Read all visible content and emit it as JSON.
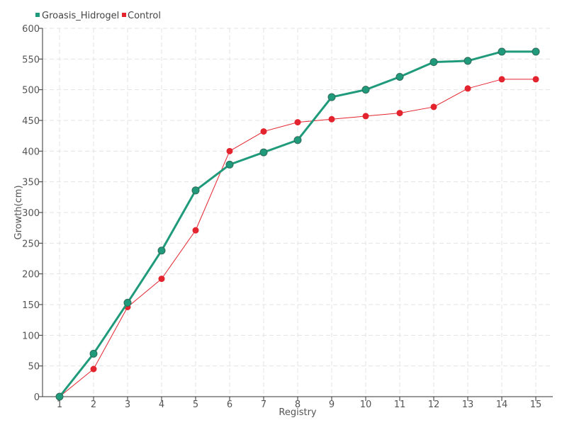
{
  "chart_data": {
    "type": "line",
    "title": "",
    "xlabel": "Registry",
    "ylabel": "Growth(cm)",
    "categories": [
      "1",
      "2",
      "3",
      "4",
      "5",
      "6",
      "7",
      "8",
      "9",
      "10",
      "11",
      "12",
      "13",
      "14",
      "15"
    ],
    "ylim": [
      0,
      600
    ],
    "yticks": [
      0,
      50,
      100,
      150,
      200,
      250,
      300,
      350,
      400,
      450,
      500,
      550,
      600
    ],
    "grid": true,
    "legend_position": "top-left",
    "series": [
      {
        "name": "Groasis_Hidrogel",
        "color": "#1f9a7a",
        "values": [
          0,
          70,
          153,
          238,
          336,
          378,
          398,
          418,
          488,
          500,
          521,
          545,
          547,
          562,
          562
        ]
      },
      {
        "name": "Control",
        "color": "#e3232d",
        "values": [
          0,
          45,
          146,
          192,
          271,
          400,
          432,
          447,
          452,
          457,
          462,
          472,
          502,
          517,
          517
        ]
      }
    ]
  }
}
